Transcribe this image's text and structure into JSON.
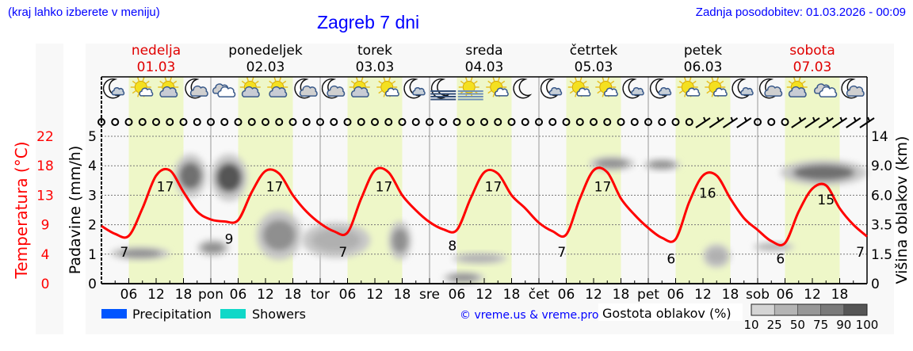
{
  "header": {
    "hint": "(kraj lahko izberete v meniju)",
    "title": "Zagreb 7 dni",
    "updated": "Zadnja posodobitev: 01.03.2026 - 00:09"
  },
  "colors": {
    "temperature": "#ff0000",
    "weekend": "#e00000",
    "link": "#0000ff",
    "daylight": "#eef7c8",
    "precipitation": "#0055ff",
    "showers": "#10d8c8"
  },
  "days": [
    {
      "name": "nedelja",
      "date": "01.03",
      "abbr": "",
      "weekend": true
    },
    {
      "name": "ponedeljek",
      "date": "02.03",
      "abbr": "pon",
      "weekend": false
    },
    {
      "name": "torek",
      "date": "03.03",
      "abbr": "tor",
      "weekend": false
    },
    {
      "name": "sreda",
      "date": "04.03",
      "abbr": "sre",
      "weekend": false
    },
    {
      "name": "četrtek",
      "date": "05.03",
      "abbr": "čet",
      "weekend": false
    },
    {
      "name": "petek",
      "date": "06.03",
      "abbr": "pet",
      "weekend": false
    },
    {
      "name": "sobota",
      "date": "07.03",
      "abbr": "sob",
      "weekend": true
    }
  ],
  "weather_icons": [
    "moon-small-cloud",
    "sun-small-cloud",
    "sun-cloud",
    "moon-cloud",
    "overcast",
    "sun-cloud",
    "sun-cloud",
    "moon-cloud",
    "moon-cloud",
    "sun-cloud",
    "sun-small-cloud",
    "moon-small-cloud",
    "moon-fog",
    "sun-fog",
    "sun-small-cloud",
    "moon-clear",
    "moon-small-cloud",
    "sun-small-cloud",
    "sun-small-cloud",
    "moon-small-cloud",
    "moon-small-cloud",
    "sun-small-cloud",
    "sun-small-cloud",
    "moon-small-cloud",
    "moon-cloud",
    "sun-cloud",
    "overcast",
    "moon-cloud"
  ],
  "wind": [
    "calm",
    "calm",
    "calm",
    "calm",
    "calm",
    "calm",
    "calm",
    "calm",
    "calm",
    "calm",
    "calm",
    "calm",
    "calm",
    "calm",
    "calm",
    "calm",
    "calm",
    "calm",
    "calm",
    "calm",
    "calm",
    "calm",
    "calm",
    "calm",
    "calm",
    "calm",
    "calm",
    "calm",
    "calm",
    "calm",
    "calm",
    "calm",
    "calm",
    "calm",
    "calm",
    "calm",
    "calm",
    "calm",
    "calm",
    "calm",
    "calm",
    "calm",
    "calm",
    "calm",
    "barb",
    "barb",
    "barb",
    "barb",
    "calm",
    "calm",
    "calm",
    "barb",
    "barb",
    "barb",
    "barb",
    "barb",
    "barb"
  ],
  "chart_data": {
    "type": "line",
    "x_ticks": [
      "06",
      "12",
      "18"
    ],
    "left_axis": {
      "label": "Padavine (mm/h)",
      "ticks": [
        "0",
        "1",
        "2",
        "3",
        "4",
        "5"
      ],
      "range": [
        0,
        5
      ]
    },
    "temp_axis": {
      "label": "Temperatura (°C)",
      "ticks": [
        "0",
        "4",
        "9",
        "13",
        "18",
        "22"
      ],
      "range": [
        0,
        22.5
      ]
    },
    "right_axis": {
      "label": "Višina oblakov (km)",
      "ticks": [
        "0",
        "1.5",
        "3.5",
        "6.0",
        "9.0",
        "14"
      ]
    },
    "grid": true,
    "temperature_c": [
      {
        "date": "01.03",
        "hours": [
          0,
          3,
          6,
          9,
          12,
          15,
          18,
          21
        ],
        "values": [
          8.8,
          7.6,
          7.3,
          11.5,
          16.5,
          17.3,
          14,
          11
        ]
      },
      {
        "date": "02.03",
        "hours": [
          0,
          3,
          6,
          9,
          12,
          15,
          18,
          21
        ],
        "values": [
          9.8,
          9.5,
          9.7,
          14,
          17.2,
          16.8,
          13.5,
          11
        ]
      },
      {
        "date": "03.03",
        "hours": [
          0,
          3,
          6,
          9,
          12,
          15,
          18,
          21
        ],
        "values": [
          9.2,
          8,
          7.8,
          13,
          17.3,
          17,
          13.5,
          11.2
        ]
      },
      {
        "date": "04.03",
        "hours": [
          0,
          3,
          6,
          9,
          12,
          15,
          18,
          21
        ],
        "values": [
          9.4,
          8.3,
          8.2,
          13,
          17,
          16.8,
          13.5,
          11.5
        ]
      },
      {
        "date": "05.03",
        "hours": [
          0,
          3,
          6,
          9,
          12,
          15,
          18,
          21
        ],
        "values": [
          9.3,
          8,
          7.5,
          13,
          17.3,
          17,
          13,
          10.5
        ]
      },
      {
        "date": "06.03",
        "hours": [
          0,
          3,
          6,
          9,
          12,
          15,
          18,
          21
        ],
        "values": [
          8.5,
          7,
          6.8,
          12.5,
          16.5,
          16.5,
          13,
          10
        ]
      },
      {
        "date": "07.03",
        "hours": [
          0,
          3,
          6,
          9,
          12,
          15,
          18,
          21,
          24
        ],
        "values": [
          8.2,
          6.5,
          6.2,
          11,
          14.5,
          15,
          11.5,
          9,
          7.2
        ]
      }
    ],
    "extremes": [
      {
        "date": "01.03",
        "hour": 5,
        "value": "7"
      },
      {
        "date": "01.03",
        "hour": 14,
        "value": "17"
      },
      {
        "date": "02.03",
        "hour": 4,
        "value": "9"
      },
      {
        "date": "02.03",
        "hour": 14,
        "value": "17"
      },
      {
        "date": "03.03",
        "hour": 5,
        "value": "7"
      },
      {
        "date": "03.03",
        "hour": 14,
        "value": "17"
      },
      {
        "date": "04.03",
        "hour": 5,
        "value": "8"
      },
      {
        "date": "04.03",
        "hour": 14,
        "value": "17"
      },
      {
        "date": "05.03",
        "hour": 5,
        "value": "7"
      },
      {
        "date": "05.03",
        "hour": 14,
        "value": "17"
      },
      {
        "date": "06.03",
        "hour": 5,
        "value": "6"
      },
      {
        "date": "06.03",
        "hour": 13,
        "value": "16"
      },
      {
        "date": "07.03",
        "hour": 5,
        "value": "6"
      },
      {
        "date": "07.03",
        "hour": 15,
        "value": "15"
      },
      {
        "date": "07.03",
        "hour": 24,
        "value": "7"
      }
    ],
    "cloud_density": [
      {
        "from": "01.03 02:00",
        "to": "01.03 15:00",
        "km": [
          1.2,
          2.0
        ],
        "cover": 50
      },
      {
        "from": "01.03 16:00",
        "to": "01.03 23:00",
        "km": [
          5.8,
          11
        ],
        "cover": 75
      },
      {
        "from": "02.03 00:00",
        "to": "02.03 08:00",
        "km": [
          5.5,
          11
        ],
        "cover": 90
      },
      {
        "from": "01.03 21:00",
        "to": "02.03 04:00",
        "km": [
          1.4,
          2.5
        ],
        "cover": 50
      },
      {
        "from": "02.03 10:00",
        "to": "02.03 20:00",
        "km": [
          1.2,
          4.7
        ],
        "cover": 60
      },
      {
        "from": "02.03 20:00",
        "to": "03.03 11:00",
        "km": [
          1.3,
          3.7
        ],
        "cover": 25
      },
      {
        "from": "03.03 15:00",
        "to": "03.03 20:00",
        "km": [
          1.2,
          3.8
        ],
        "cover": 50
      },
      {
        "from": "04.03 05:00",
        "to": "04.03 17:00",
        "km": [
          1.0,
          1.6
        ],
        "cover": 25
      },
      {
        "from": "04.03 03:00",
        "to": "04.03 12:00",
        "km": [
          0,
          0.6
        ],
        "cover": 50
      },
      {
        "from": "05.03 11:00",
        "to": "05.03 21:00",
        "km": [
          8.5,
          10.6
        ],
        "cover": 50
      },
      {
        "from": "05.03 23:00",
        "to": "06.03 07:00",
        "km": [
          8.5,
          10.2
        ],
        "cover": 50
      },
      {
        "from": "06.03 12:00",
        "to": "06.03 18:00",
        "km": [
          0.8,
          2.2
        ],
        "cover": 40
      },
      {
        "from": "06.03 23:00",
        "to": "07.03 08:00",
        "km": [
          1.7,
          2.3
        ],
        "cover": 30
      },
      {
        "from": "07.03 05:00",
        "to": "08.03 00:00",
        "km": [
          7.0,
          10
        ],
        "cover": 80
      }
    ],
    "precipitation": []
  },
  "legend": {
    "precipitation": "Precipitation",
    "showers": "Showers",
    "credit": "© vreme.us & vreme.pro",
    "density_title": "Gostota oblakov (%)",
    "density_ticks": [
      "10",
      "25",
      "50",
      "75",
      "90",
      "100"
    ],
    "density_colors": [
      "#d4d4d4",
      "#b4b4b4",
      "#979797",
      "#7a7a7a",
      "#555555"
    ]
  }
}
